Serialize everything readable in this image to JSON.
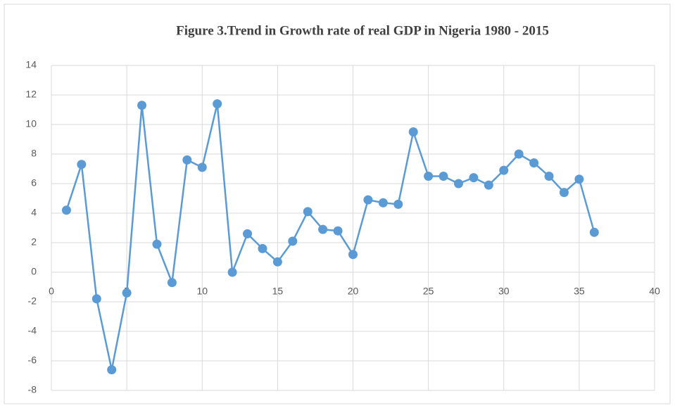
{
  "chart_data": {
    "type": "line",
    "title": "Figure 3.Trend  in Growth  rate of real GDP  in Nigeria 1980 - 2015",
    "x": [
      1,
      2,
      3,
      4,
      5,
      6,
      7,
      8,
      9,
      10,
      11,
      12,
      13,
      14,
      15,
      16,
      17,
      18,
      19,
      20,
      21,
      22,
      23,
      24,
      25,
      26,
      27,
      28,
      29,
      30,
      31,
      32,
      33,
      34,
      35,
      36
    ],
    "values": [
      4.2,
      7.3,
      -1.8,
      -6.6,
      -1.4,
      11.3,
      1.9,
      -0.7,
      7.6,
      7.1,
      11.4,
      0,
      2.6,
      1.6,
      0.7,
      2.1,
      4.1,
      2.9,
      2.8,
      1.2,
      4.9,
      4.7,
      4.6,
      9.5,
      6.5,
      6.5,
      6.0,
      6.4,
      5.9,
      6.9,
      8.0,
      7.4,
      6.5,
      5.4,
      6.3,
      2.7
    ],
    "color": "#5b9bd5",
    "xlim": [
      0,
      40
    ],
    "xticks": [
      0,
      5,
      10,
      15,
      20,
      25,
      30,
      35,
      40
    ],
    "ylim": [
      -8,
      14
    ],
    "yticks": [
      -8,
      -6,
      -4,
      -2,
      0,
      2,
      4,
      6,
      8,
      10,
      12,
      14
    ],
    "grid": true
  }
}
